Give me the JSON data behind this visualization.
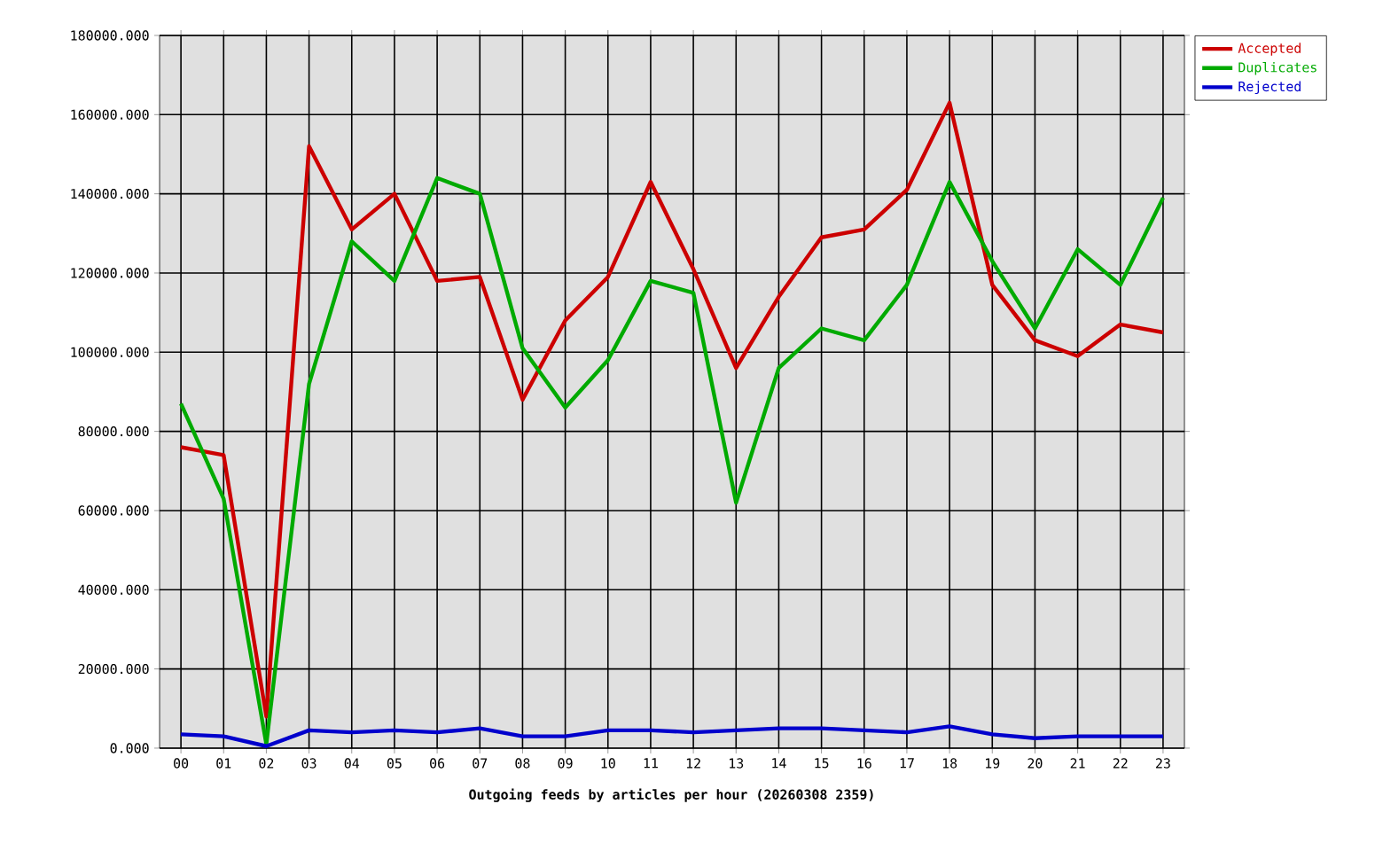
{
  "chart_data": {
    "type": "line",
    "xlabel": "Outgoing feeds by articles per hour (20260308 2359)",
    "categories": [
      "00",
      "01",
      "02",
      "03",
      "04",
      "05",
      "06",
      "07",
      "08",
      "09",
      "10",
      "11",
      "12",
      "13",
      "14",
      "15",
      "16",
      "17",
      "18",
      "19",
      "20",
      "21",
      "22",
      "23"
    ],
    "series": [
      {
        "name": "Accepted",
        "color": "#cc0000",
        "values": [
          76000,
          74000,
          8000,
          152000,
          131000,
          140000,
          118000,
          119000,
          88000,
          108000,
          119000,
          143000,
          121000,
          96000,
          114000,
          129000,
          131000,
          141000,
          163000,
          117000,
          103000,
          99000,
          107000,
          105000
        ]
      },
      {
        "name": "Duplicates",
        "color": "#00aa00",
        "values": [
          87000,
          63000,
          1000,
          92000,
          128000,
          118000,
          144000,
          140000,
          101000,
          86000,
          98000,
          118000,
          115000,
          62000,
          96000,
          106000,
          103000,
          117000,
          143000,
          123000,
          106000,
          126000,
          117000,
          139000
        ]
      },
      {
        "name": "Rejected",
        "color": "#0000cc",
        "values": [
          3500,
          3000,
          500,
          4500,
          4000,
          4500,
          4000,
          5000,
          3000,
          3000,
          4500,
          4500,
          4000,
          4500,
          5000,
          5000,
          4500,
          4000,
          5500,
          3500,
          2500,
          3000,
          3000,
          3000
        ]
      }
    ],
    "ylim": [
      0,
      180000
    ],
    "yticks": [
      {
        "value": 0,
        "label": "0.000"
      },
      {
        "value": 20000,
        "label": "20000.000"
      },
      {
        "value": 40000,
        "label": "40000.000"
      },
      {
        "value": 60000,
        "label": "60000.000"
      },
      {
        "value": 80000,
        "label": "80000.000"
      },
      {
        "value": 100000,
        "label": "100000.000"
      },
      {
        "value": 120000,
        "label": "120000.000"
      },
      {
        "value": 140000,
        "label": "140000.000"
      },
      {
        "value": 160000,
        "label": "160000.000"
      },
      {
        "value": 180000,
        "label": "180000.000"
      }
    ],
    "grid": true,
    "legend": "top right",
    "marker": "none",
    "line_style": "solid"
  }
}
